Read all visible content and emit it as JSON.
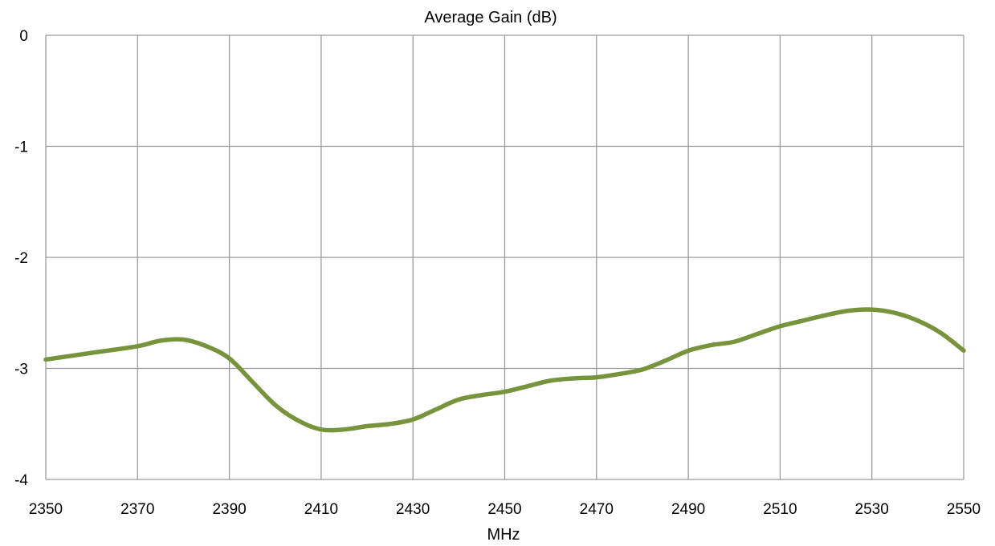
{
  "chart_data": {
    "type": "line",
    "title": "Average  Gain  (dB)",
    "xlabel": "MHz",
    "ylabel": "",
    "xlim": [
      2350,
      2550
    ],
    "ylim": [
      -4,
      0
    ],
    "x_ticks": [
      2350,
      2370,
      2390,
      2410,
      2430,
      2450,
      2470,
      2490,
      2510,
      2530,
      2550
    ],
    "y_ticks": [
      0,
      -1,
      -2,
      -3,
      -4
    ],
    "grid": true,
    "legend": "none",
    "series": [
      {
        "color": "#77933c",
        "x": [
          2350,
          2360,
          2370,
          2375,
          2380,
          2385,
          2390,
          2395,
          2400,
          2405,
          2410,
          2415,
          2420,
          2425,
          2430,
          2435,
          2440,
          2445,
          2450,
          2455,
          2460,
          2465,
          2470,
          2475,
          2480,
          2485,
          2490,
          2495,
          2500,
          2505,
          2510,
          2515,
          2520,
          2525,
          2530,
          2535,
          2540,
          2545,
          2550
        ],
        "y": [
          -2.92,
          -2.86,
          -2.8,
          -2.75,
          -2.74,
          -2.8,
          -2.91,
          -3.12,
          -3.33,
          -3.47,
          -3.55,
          -3.55,
          -3.52,
          -3.5,
          -3.46,
          -3.37,
          -3.28,
          -3.24,
          -3.21,
          -3.16,
          -3.11,
          -3.09,
          -3.08,
          -3.05,
          -3.01,
          -2.93,
          -2.84,
          -2.79,
          -2.76,
          -2.69,
          -2.62,
          -2.57,
          -2.52,
          -2.48,
          -2.47,
          -2.5,
          -2.57,
          -2.68,
          -2.84
        ]
      }
    ]
  }
}
